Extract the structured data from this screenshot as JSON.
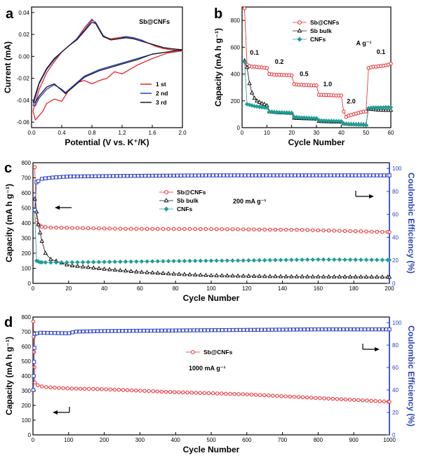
{
  "chart_data": [
    {
      "panel": "a",
      "type": "line",
      "xlabel": "Potential (V vs. K⁺/K)",
      "ylabel": "Current (mA)",
      "xlim": [
        0.0,
        2.0
      ],
      "ylim": [
        -0.065,
        0.045
      ],
      "xticks": [
        "0.0",
        "0.4",
        "0.8",
        "1.2",
        "1.6",
        "2.0"
      ],
      "xtick_values": [
        0.0,
        0.4,
        0.8,
        1.2,
        1.6,
        2.0
      ],
      "yticks": [
        "-0.06",
        "-0.04",
        "-0.02",
        "0.00",
        "0.02",
        "0.04"
      ],
      "ytick_values": [
        -0.06,
        -0.04,
        -0.02,
        0.0,
        0.02,
        0.04
      ],
      "annotation": "Sb@CNFs",
      "legend_position": "lower-right",
      "series": [
        {
          "name": "1 st",
          "color": "#e8262b",
          "anodic_x": [
            0.02,
            0.1,
            0.2,
            0.3,
            0.4,
            0.5,
            0.6,
            0.7,
            0.8,
            0.85,
            0.95,
            1.05,
            1.15,
            1.25,
            1.35,
            1.45,
            1.55,
            1.65,
            1.75,
            1.85,
            2.0
          ],
          "anodic_y": [
            -0.05,
            -0.03,
            -0.015,
            -0.005,
            0.004,
            0.01,
            0.016,
            0.026,
            0.034,
            0.03,
            0.018,
            0.016,
            0.017,
            0.018,
            0.017,
            0.015,
            0.012,
            0.009,
            0.007,
            0.006,
            0.005
          ],
          "cathodic_x": [
            2.0,
            1.8,
            1.6,
            1.4,
            1.3,
            1.2,
            1.1,
            1.0,
            0.9,
            0.8,
            0.7,
            0.6,
            0.5,
            0.4,
            0.3,
            0.2,
            0.15,
            0.1,
            0.05,
            0.02
          ],
          "cathodic_y": [
            0.005,
            0.003,
            -0.002,
            -0.008,
            -0.012,
            -0.016,
            -0.014,
            -0.02,
            -0.022,
            -0.025,
            -0.022,
            -0.024,
            -0.03,
            -0.041,
            -0.039,
            -0.043,
            -0.05,
            -0.054,
            -0.058,
            -0.05
          ]
        },
        {
          "name": "2 nd",
          "color": "#2a3fc4",
          "anodic_x": [
            0.02,
            0.1,
            0.2,
            0.3,
            0.4,
            0.5,
            0.6,
            0.7,
            0.8,
            0.85,
            0.95,
            1.05,
            1.15,
            1.25,
            1.35,
            1.45,
            1.55,
            1.65,
            1.75,
            1.85,
            2.0
          ],
          "anodic_y": [
            -0.045,
            -0.025,
            -0.012,
            -0.003,
            0.004,
            0.01,
            0.016,
            0.024,
            0.033,
            0.031,
            0.019,
            0.015,
            0.016,
            0.018,
            0.017,
            0.015,
            0.012,
            0.01,
            0.008,
            0.007,
            0.006
          ],
          "cathodic_x": [
            2.0,
            1.8,
            1.6,
            1.4,
            1.2,
            1.0,
            0.9,
            0.8,
            0.7,
            0.6,
            0.5,
            0.45,
            0.4,
            0.3,
            0.2,
            0.1,
            0.05,
            0.02
          ],
          "cathodic_y": [
            0.006,
            0.004,
            0.002,
            -0.002,
            -0.006,
            -0.01,
            -0.012,
            -0.015,
            -0.018,
            -0.024,
            -0.03,
            -0.033,
            -0.03,
            -0.026,
            -0.03,
            -0.038,
            -0.045,
            -0.045
          ]
        },
        {
          "name": "3 rd",
          "color": "#1a1a1a",
          "anodic_x": [
            0.02,
            0.1,
            0.2,
            0.3,
            0.4,
            0.5,
            0.6,
            0.7,
            0.8,
            0.85,
            0.95,
            1.05,
            1.15,
            1.25,
            1.35,
            1.45,
            1.55,
            1.65,
            1.75,
            1.85,
            2.0
          ],
          "anodic_y": [
            -0.042,
            -0.024,
            -0.011,
            -0.002,
            0.004,
            0.01,
            0.015,
            0.023,
            0.031,
            0.03,
            0.018,
            0.015,
            0.016,
            0.017,
            0.016,
            0.014,
            0.012,
            0.01,
            0.008,
            0.007,
            0.006
          ],
          "cathodic_x": [
            2.0,
            1.8,
            1.6,
            1.4,
            1.2,
            1.0,
            0.9,
            0.8,
            0.7,
            0.6,
            0.5,
            0.45,
            0.4,
            0.3,
            0.2,
            0.1,
            0.05,
            0.02
          ],
          "cathodic_y": [
            0.006,
            0.004,
            0.002,
            -0.003,
            -0.007,
            -0.011,
            -0.013,
            -0.016,
            -0.019,
            -0.025,
            -0.031,
            -0.034,
            -0.031,
            -0.025,
            -0.028,
            -0.036,
            -0.042,
            -0.042
          ]
        }
      ]
    },
    {
      "panel": "b",
      "type": "scatter",
      "xlabel": "Cycle Number",
      "ylabel": "Capacity (mA h g⁻¹)",
      "xlim": [
        0,
        60
      ],
      "ylim": [
        0,
        900
      ],
      "xticks": [
        "0",
        "10",
        "20",
        "30",
        "40",
        "50",
        "60"
      ],
      "xtick_values": [
        0,
        10,
        20,
        30,
        40,
        50,
        60
      ],
      "yticks": [
        "0",
        "200",
        "400",
        "600",
        "800"
      ],
      "ytick_values": [
        0,
        200,
        400,
        600,
        800
      ],
      "legend_position": "top-right",
      "rate_unit_label": "A g⁻¹",
      "rate_labels": [
        {
          "text": "0.1",
          "x": 5,
          "y": 545
        },
        {
          "text": "0.2",
          "x": 15,
          "y": 475
        },
        {
          "text": "0.5",
          "x": 25,
          "y": 385
        },
        {
          "text": "1.0",
          "x": 34.5,
          "y": 310
        },
        {
          "text": "2.0",
          "x": 44,
          "y": 180
        },
        {
          "text": "0.1",
          "x": 56,
          "y": 550
        }
      ],
      "series": [
        {
          "name": "Sb@CNFs",
          "marker": "circle",
          "color": "#e8262b",
          "x": [
            1,
            2,
            3,
            4,
            5,
            6,
            7,
            8,
            9,
            10,
            11,
            12,
            13,
            14,
            15,
            16,
            17,
            18,
            19,
            20,
            21,
            22,
            23,
            24,
            25,
            26,
            27,
            28,
            29,
            30,
            31,
            32,
            33,
            34,
            35,
            36,
            37,
            38,
            39,
            40,
            41,
            42,
            43,
            44,
            45,
            46,
            47,
            48,
            49,
            50,
            51,
            52,
            53,
            54,
            55,
            56,
            57,
            58,
            59,
            60
          ],
          "y": [
            890,
            470,
            460,
            455,
            455,
            452,
            450,
            450,
            448,
            445,
            400,
            398,
            396,
            395,
            395,
            394,
            393,
            392,
            392,
            390,
            325,
            322,
            320,
            320,
            318,
            318,
            316,
            315,
            315,
            315,
            245,
            245,
            244,
            243,
            242,
            242,
            241,
            240,
            240,
            240,
            120,
            80,
            90,
            95,
            100,
            105,
            110,
            115,
            120,
            120,
            445,
            450,
            455,
            455,
            458,
            460,
            462,
            465,
            470,
            478
          ]
        },
        {
          "name": "Sb bulk",
          "marker": "triangle",
          "color": "#111111",
          "x": [
            1,
            2,
            3,
            4,
            5,
            6,
            7,
            8,
            9,
            10,
            11,
            12,
            13,
            14,
            15,
            16,
            17,
            18,
            19,
            20,
            21,
            22,
            23,
            24,
            25,
            26,
            27,
            28,
            29,
            30,
            31,
            32,
            33,
            34,
            35,
            36,
            37,
            38,
            39,
            40,
            41,
            42,
            43,
            44,
            45,
            46,
            47,
            48,
            49,
            50,
            51,
            52,
            53,
            54,
            55,
            56,
            57,
            58,
            59,
            60
          ],
          "y": [
            500,
            450,
            330,
            260,
            220,
            200,
            190,
            180,
            175,
            165,
            120,
            118,
            116,
            114,
            112,
            112,
            111,
            110,
            110,
            108,
            72,
            70,
            70,
            69,
            68,
            68,
            67,
            66,
            66,
            65,
            48,
            47,
            46,
            45,
            45,
            44,
            44,
            43,
            43,
            42,
            30,
            28,
            27,
            26,
            26,
            25,
            25,
            24,
            24,
            23,
            140,
            138,
            136,
            134,
            132,
            132,
            131,
            130,
            130,
            130
          ]
        },
        {
          "name": "CNFs",
          "marker": "diamond",
          "color": "#1f9e94",
          "x": [
            1,
            2,
            3,
            4,
            5,
            6,
            7,
            8,
            9,
            10,
            11,
            12,
            13,
            14,
            15,
            16,
            17,
            18,
            19,
            20,
            21,
            22,
            23,
            24,
            25,
            26,
            27,
            28,
            29,
            30,
            31,
            32,
            33,
            34,
            35,
            36,
            37,
            38,
            39,
            40,
            41,
            42,
            43,
            44,
            45,
            46,
            47,
            48,
            49,
            50,
            51,
            52,
            53,
            54,
            55,
            56,
            57,
            58,
            59,
            60
          ],
          "y": [
            490,
            175,
            170,
            165,
            160,
            158,
            155,
            152,
            150,
            148,
            120,
            118,
            116,
            115,
            114,
            113,
            112,
            112,
            111,
            110,
            80,
            78,
            76,
            75,
            74,
            73,
            72,
            71,
            70,
            70,
            55,
            53,
            52,
            51,
            50,
            50,
            49,
            48,
            48,
            47,
            30,
            28,
            26,
            25,
            24,
            23,
            22,
            22,
            21,
            20,
            145,
            148,
            150,
            150,
            150,
            150,
            150,
            152,
            152,
            152
          ]
        }
      ]
    },
    {
      "panel": "c",
      "type": "scatter",
      "xlabel": "Cycle Number",
      "ylabel": "Capacity (mA h g⁻¹)",
      "y2label": "Coulombic Efficiency (%)",
      "xlim": [
        0,
        200
      ],
      "ylim": [
        0,
        800
      ],
      "y2lim": [
        0,
        105
      ],
      "xticks": [
        "0",
        "20",
        "40",
        "60",
        "80",
        "100",
        "120",
        "140",
        "160",
        "180",
        "200"
      ],
      "xtick_values": [
        0,
        20,
        40,
        60,
        80,
        100,
        120,
        140,
        160,
        180,
        200
      ],
      "yticks": [
        "0",
        "100",
        "200",
        "300",
        "400",
        "500",
        "600",
        "700",
        "800"
      ],
      "ytick_values": [
        0,
        100,
        200,
        300,
        400,
        500,
        600,
        700,
        800
      ],
      "y2ticks": [
        "0",
        "20",
        "40",
        "60",
        "80",
        "100"
      ],
      "y2tick_values": [
        0,
        20,
        40,
        60,
        80,
        100
      ],
      "legend_position": "center",
      "annotation": "200 mA g⁻¹",
      "series": [
        {
          "name": "Sb@CNFs",
          "marker": "circle",
          "color": "#e8262b",
          "x_start": 1,
          "x_end": 200,
          "x_step": 3,
          "anchors_x": [
            1,
            2,
            3,
            5,
            10,
            50,
            100,
            150,
            200
          ],
          "anchors_y": [
            770,
            420,
            390,
            375,
            370,
            362,
            360,
            355,
            340
          ]
        },
        {
          "name": "Sb bulk",
          "marker": "triangle",
          "color": "#111111",
          "x_start": 1,
          "x_end": 200,
          "x_step": 3,
          "anchors_x": [
            1,
            3,
            5,
            7,
            10,
            20,
            40,
            60,
            80,
            100,
            140,
            200
          ],
          "anchors_y": [
            560,
            390,
            280,
            200,
            160,
            120,
            95,
            75,
            62,
            52,
            45,
            42
          ]
        },
        {
          "name": "CNFs",
          "marker": "diamond",
          "color": "#1f9e94",
          "x_start": 1,
          "x_end": 200,
          "x_step": 3,
          "anchors_x": [
            1,
            2,
            4,
            10,
            40,
            80,
            120,
            160,
            200
          ],
          "anchors_y": [
            480,
            150,
            140,
            138,
            142,
            148,
            152,
            158,
            155
          ]
        },
        {
          "name": "Coulombic efficiency",
          "marker": "square",
          "color": "#2a3fc4",
          "axis": "y2",
          "x_start": 1,
          "x_end": 200,
          "x_step": 2,
          "anchors_x": [
            1,
            2,
            5,
            10,
            20,
            50,
            100,
            150,
            200
          ],
          "anchors_y": [
            64,
            88,
            91,
            92,
            93,
            93.5,
            94,
            94,
            94
          ]
        }
      ]
    },
    {
      "panel": "d",
      "type": "scatter",
      "xlabel": "Cycle Number",
      "ylabel": "Capacity (mA h g⁻¹)",
      "y2label": "Coulombic Efficiency (%)",
      "xlim": [
        0,
        1000
      ],
      "ylim": [
        0,
        800
      ],
      "y2lim": [
        0,
        105
      ],
      "xticks": [
        "0",
        "100",
        "200",
        "300",
        "400",
        "500",
        "600",
        "700",
        "800",
        "900",
        "1000"
      ],
      "xtick_values": [
        0,
        100,
        200,
        300,
        400,
        500,
        600,
        700,
        800,
        900,
        1000
      ],
      "yticks": [
        "0",
        "100",
        "200",
        "300",
        "400",
        "500",
        "600",
        "700",
        "800"
      ],
      "ytick_values": [
        0,
        100,
        200,
        300,
        400,
        500,
        600,
        700,
        800
      ],
      "y2ticks": [
        "0",
        "20",
        "40",
        "60",
        "80",
        "100"
      ],
      "y2tick_values": [
        0,
        20,
        40,
        60,
        80,
        100
      ],
      "legend_position": "center",
      "annotation": "1000 mA g⁻¹",
      "series": [
        {
          "name": "Sb@CNFs",
          "marker": "circle",
          "color": "#e8262b",
          "x_start": 1,
          "x_end": 1000,
          "x_step": 12,
          "anchors_x": [
            1,
            5,
            10,
            30,
            100,
            200,
            400,
            600,
            800,
            1000
          ],
          "anchors_y": [
            770,
            355,
            340,
            325,
            315,
            310,
            290,
            275,
            250,
            225
          ]
        },
        {
          "name": "Coulombic efficiency",
          "marker": "square",
          "color": "#2a3fc4",
          "axis": "y2",
          "x_start": 1,
          "x_end": 1000,
          "x_step": 10,
          "anchors_x": [
            1,
            5,
            20,
            100,
            120,
            200,
            400,
            600,
            800,
            1000
          ],
          "anchors_y": [
            40,
            90,
            91,
            90.5,
            92,
            92.5,
            93,
            93.5,
            94,
            94
          ]
        }
      ]
    }
  ]
}
